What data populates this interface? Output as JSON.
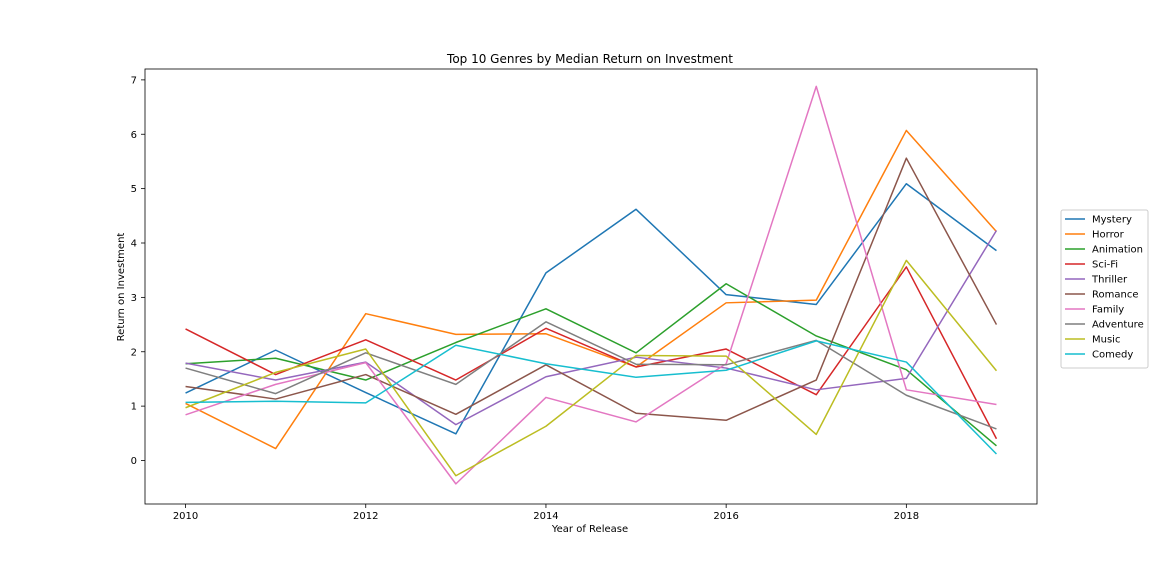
{
  "chart_data": {
    "type": "line",
    "title": "Top 10 Genres by Median Return on Investment",
    "xlabel": "Year of Release",
    "ylabel": "Return on Investment",
    "x": [
      2010,
      2011,
      2012,
      2013,
      2014,
      2015,
      2016,
      2017,
      2018,
      2019
    ],
    "xlim": [
      2009.55,
      2019.45
    ],
    "ylim": [
      -0.8,
      7.2
    ],
    "xticks": [
      2010,
      2012,
      2014,
      2016,
      2018
    ],
    "yticks": [
      0,
      1,
      2,
      3,
      4,
      5,
      6,
      7
    ],
    "legend_position": "center-right (outside plot)",
    "grid": false,
    "series": [
      {
        "name": "Mystery",
        "color": "#1f77b4",
        "values": [
          1.24,
          2.03,
          1.25,
          0.49,
          3.45,
          4.62,
          3.05,
          2.87,
          5.09,
          3.86
        ]
      },
      {
        "name": "Horror",
        "color": "#ff7f0e",
        "values": [
          1.05,
          0.22,
          2.7,
          2.32,
          2.33,
          1.72,
          2.9,
          2.95,
          6.07,
          4.21
        ]
      },
      {
        "name": "Animation",
        "color": "#2ca02c",
        "values": [
          1.78,
          1.88,
          1.48,
          2.17,
          2.79,
          1.98,
          3.25,
          2.29,
          1.67,
          0.27
        ]
      },
      {
        "name": "Sci-Fi",
        "color": "#d62728",
        "values": [
          2.42,
          1.58,
          2.22,
          1.48,
          2.43,
          1.72,
          2.05,
          1.21,
          3.56,
          0.4
        ]
      },
      {
        "name": "Thriller",
        "color": "#9467bd",
        "values": [
          1.79,
          1.48,
          1.81,
          0.66,
          1.54,
          1.9,
          1.7,
          1.3,
          1.51,
          4.23
        ]
      },
      {
        "name": "Romance",
        "color": "#8c564b",
        "values": [
          1.36,
          1.13,
          1.58,
          0.85,
          1.76,
          0.87,
          0.74,
          1.48,
          5.56,
          2.5
        ]
      },
      {
        "name": "Family",
        "color": "#e377c2",
        "values": [
          0.84,
          1.4,
          1.8,
          -0.43,
          1.16,
          0.71,
          1.78,
          6.88,
          1.3,
          1.03
        ]
      },
      {
        "name": "Adventure",
        "color": "#7f7f7f",
        "values": [
          1.7,
          1.23,
          1.98,
          1.4,
          2.55,
          1.77,
          1.76,
          2.21,
          1.2,
          0.58
        ]
      },
      {
        "name": "Music",
        "color": "#bcbd22",
        "values": [
          0.97,
          1.62,
          2.05,
          -0.28,
          0.63,
          1.93,
          1.92,
          0.48,
          3.68,
          1.65
        ]
      },
      {
        "name": "Comedy",
        "color": "#17becf",
        "values": [
          1.07,
          1.09,
          1.06,
          2.12,
          1.78,
          1.53,
          1.66,
          2.2,
          1.81,
          0.12
        ]
      }
    ]
  }
}
